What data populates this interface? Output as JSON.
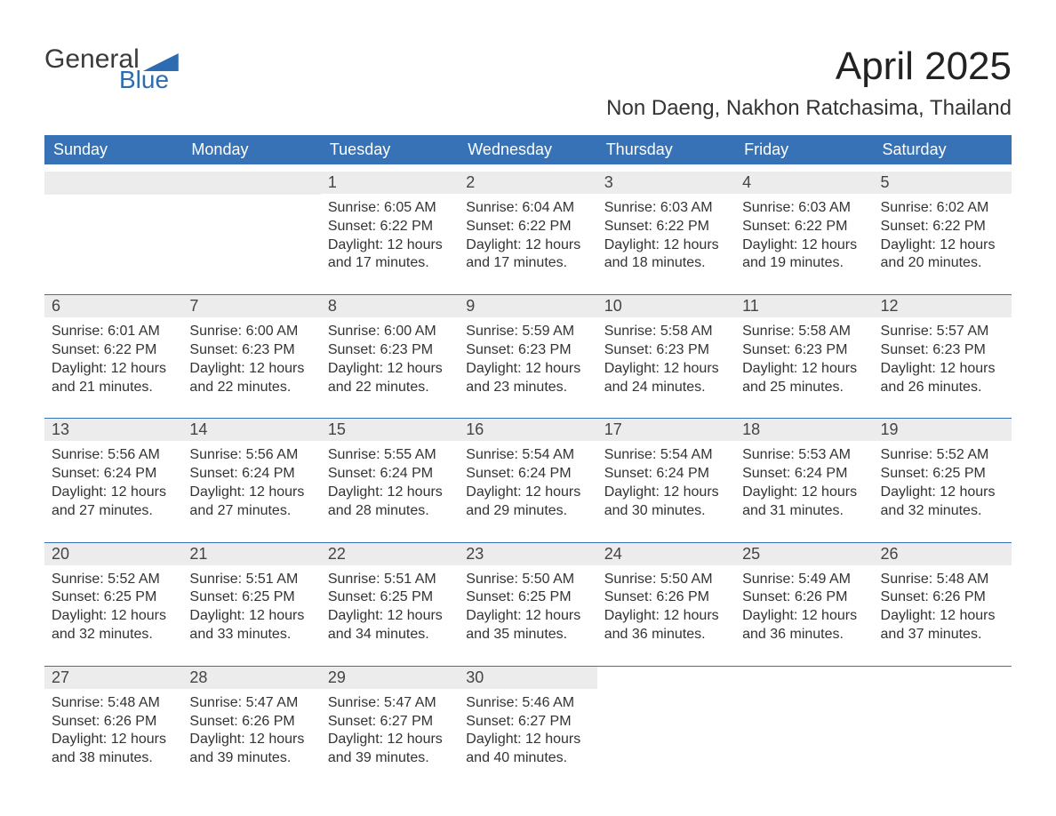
{
  "logo": {
    "text1": "General",
    "text2": "Blue"
  },
  "title": "April 2025",
  "location": "Non Daeng, Nakhon Ratchasima, Thailand",
  "colors": {
    "header_bg": "#3672b5",
    "header_text": "#ffffff",
    "daynum_bg": "#ececec",
    "week_border": "#3672b5",
    "body_text": "#333333",
    "page_bg": "#ffffff",
    "logo_blue": "#2d6cb0"
  },
  "daysOfWeek": [
    "Sunday",
    "Monday",
    "Tuesday",
    "Wednesday",
    "Thursday",
    "Friday",
    "Saturday"
  ],
  "weeks": [
    [
      {
        "empty": true
      },
      {
        "empty": true
      },
      {
        "num": "1",
        "sunrise": "Sunrise: 6:05 AM",
        "sunset": "Sunset: 6:22 PM",
        "day1": "Daylight: 12 hours",
        "day2": "and 17 minutes."
      },
      {
        "num": "2",
        "sunrise": "Sunrise: 6:04 AM",
        "sunset": "Sunset: 6:22 PM",
        "day1": "Daylight: 12 hours",
        "day2": "and 17 minutes."
      },
      {
        "num": "3",
        "sunrise": "Sunrise: 6:03 AM",
        "sunset": "Sunset: 6:22 PM",
        "day1": "Daylight: 12 hours",
        "day2": "and 18 minutes."
      },
      {
        "num": "4",
        "sunrise": "Sunrise: 6:03 AM",
        "sunset": "Sunset: 6:22 PM",
        "day1": "Daylight: 12 hours",
        "day2": "and 19 minutes."
      },
      {
        "num": "5",
        "sunrise": "Sunrise: 6:02 AM",
        "sunset": "Sunset: 6:22 PM",
        "day1": "Daylight: 12 hours",
        "day2": "and 20 minutes."
      }
    ],
    [
      {
        "num": "6",
        "sunrise": "Sunrise: 6:01 AM",
        "sunset": "Sunset: 6:22 PM",
        "day1": "Daylight: 12 hours",
        "day2": "and 21 minutes."
      },
      {
        "num": "7",
        "sunrise": "Sunrise: 6:00 AM",
        "sunset": "Sunset: 6:23 PM",
        "day1": "Daylight: 12 hours",
        "day2": "and 22 minutes."
      },
      {
        "num": "8",
        "sunrise": "Sunrise: 6:00 AM",
        "sunset": "Sunset: 6:23 PM",
        "day1": "Daylight: 12 hours",
        "day2": "and 22 minutes."
      },
      {
        "num": "9",
        "sunrise": "Sunrise: 5:59 AM",
        "sunset": "Sunset: 6:23 PM",
        "day1": "Daylight: 12 hours",
        "day2": "and 23 minutes."
      },
      {
        "num": "10",
        "sunrise": "Sunrise: 5:58 AM",
        "sunset": "Sunset: 6:23 PM",
        "day1": "Daylight: 12 hours",
        "day2": "and 24 minutes."
      },
      {
        "num": "11",
        "sunrise": "Sunrise: 5:58 AM",
        "sunset": "Sunset: 6:23 PM",
        "day1": "Daylight: 12 hours",
        "day2": "and 25 minutes."
      },
      {
        "num": "12",
        "sunrise": "Sunrise: 5:57 AM",
        "sunset": "Sunset: 6:23 PM",
        "day1": "Daylight: 12 hours",
        "day2": "and 26 minutes."
      }
    ],
    [
      {
        "num": "13",
        "sunrise": "Sunrise: 5:56 AM",
        "sunset": "Sunset: 6:24 PM",
        "day1": "Daylight: 12 hours",
        "day2": "and 27 minutes."
      },
      {
        "num": "14",
        "sunrise": "Sunrise: 5:56 AM",
        "sunset": "Sunset: 6:24 PM",
        "day1": "Daylight: 12 hours",
        "day2": "and 27 minutes."
      },
      {
        "num": "15",
        "sunrise": "Sunrise: 5:55 AM",
        "sunset": "Sunset: 6:24 PM",
        "day1": "Daylight: 12 hours",
        "day2": "and 28 minutes."
      },
      {
        "num": "16",
        "sunrise": "Sunrise: 5:54 AM",
        "sunset": "Sunset: 6:24 PM",
        "day1": "Daylight: 12 hours",
        "day2": "and 29 minutes."
      },
      {
        "num": "17",
        "sunrise": "Sunrise: 5:54 AM",
        "sunset": "Sunset: 6:24 PM",
        "day1": "Daylight: 12 hours",
        "day2": "and 30 minutes."
      },
      {
        "num": "18",
        "sunrise": "Sunrise: 5:53 AM",
        "sunset": "Sunset: 6:24 PM",
        "day1": "Daylight: 12 hours",
        "day2": "and 31 minutes."
      },
      {
        "num": "19",
        "sunrise": "Sunrise: 5:52 AM",
        "sunset": "Sunset: 6:25 PM",
        "day1": "Daylight: 12 hours",
        "day2": "and 32 minutes."
      }
    ],
    [
      {
        "num": "20",
        "sunrise": "Sunrise: 5:52 AM",
        "sunset": "Sunset: 6:25 PM",
        "day1": "Daylight: 12 hours",
        "day2": "and 32 minutes."
      },
      {
        "num": "21",
        "sunrise": "Sunrise: 5:51 AM",
        "sunset": "Sunset: 6:25 PM",
        "day1": "Daylight: 12 hours",
        "day2": "and 33 minutes."
      },
      {
        "num": "22",
        "sunrise": "Sunrise: 5:51 AM",
        "sunset": "Sunset: 6:25 PM",
        "day1": "Daylight: 12 hours",
        "day2": "and 34 minutes."
      },
      {
        "num": "23",
        "sunrise": "Sunrise: 5:50 AM",
        "sunset": "Sunset: 6:25 PM",
        "day1": "Daylight: 12 hours",
        "day2": "and 35 minutes."
      },
      {
        "num": "24",
        "sunrise": "Sunrise: 5:50 AM",
        "sunset": "Sunset: 6:26 PM",
        "day1": "Daylight: 12 hours",
        "day2": "and 36 minutes."
      },
      {
        "num": "25",
        "sunrise": "Sunrise: 5:49 AM",
        "sunset": "Sunset: 6:26 PM",
        "day1": "Daylight: 12 hours",
        "day2": "and 36 minutes."
      },
      {
        "num": "26",
        "sunrise": "Sunrise: 5:48 AM",
        "sunset": "Sunset: 6:26 PM",
        "day1": "Daylight: 12 hours",
        "day2": "and 37 minutes."
      }
    ],
    [
      {
        "num": "27",
        "sunrise": "Sunrise: 5:48 AM",
        "sunset": "Sunset: 6:26 PM",
        "day1": "Daylight: 12 hours",
        "day2": "and 38 minutes."
      },
      {
        "num": "28",
        "sunrise": "Sunrise: 5:47 AM",
        "sunset": "Sunset: 6:26 PM",
        "day1": "Daylight: 12 hours",
        "day2": "and 39 minutes."
      },
      {
        "num": "29",
        "sunrise": "Sunrise: 5:47 AM",
        "sunset": "Sunset: 6:27 PM",
        "day1": "Daylight: 12 hours",
        "day2": "and 39 minutes."
      },
      {
        "num": "30",
        "sunrise": "Sunrise: 5:46 AM",
        "sunset": "Sunset: 6:27 PM",
        "day1": "Daylight: 12 hours",
        "day2": "and 40 minutes."
      },
      {
        "empty": true
      },
      {
        "empty": true
      },
      {
        "empty": true
      }
    ]
  ]
}
